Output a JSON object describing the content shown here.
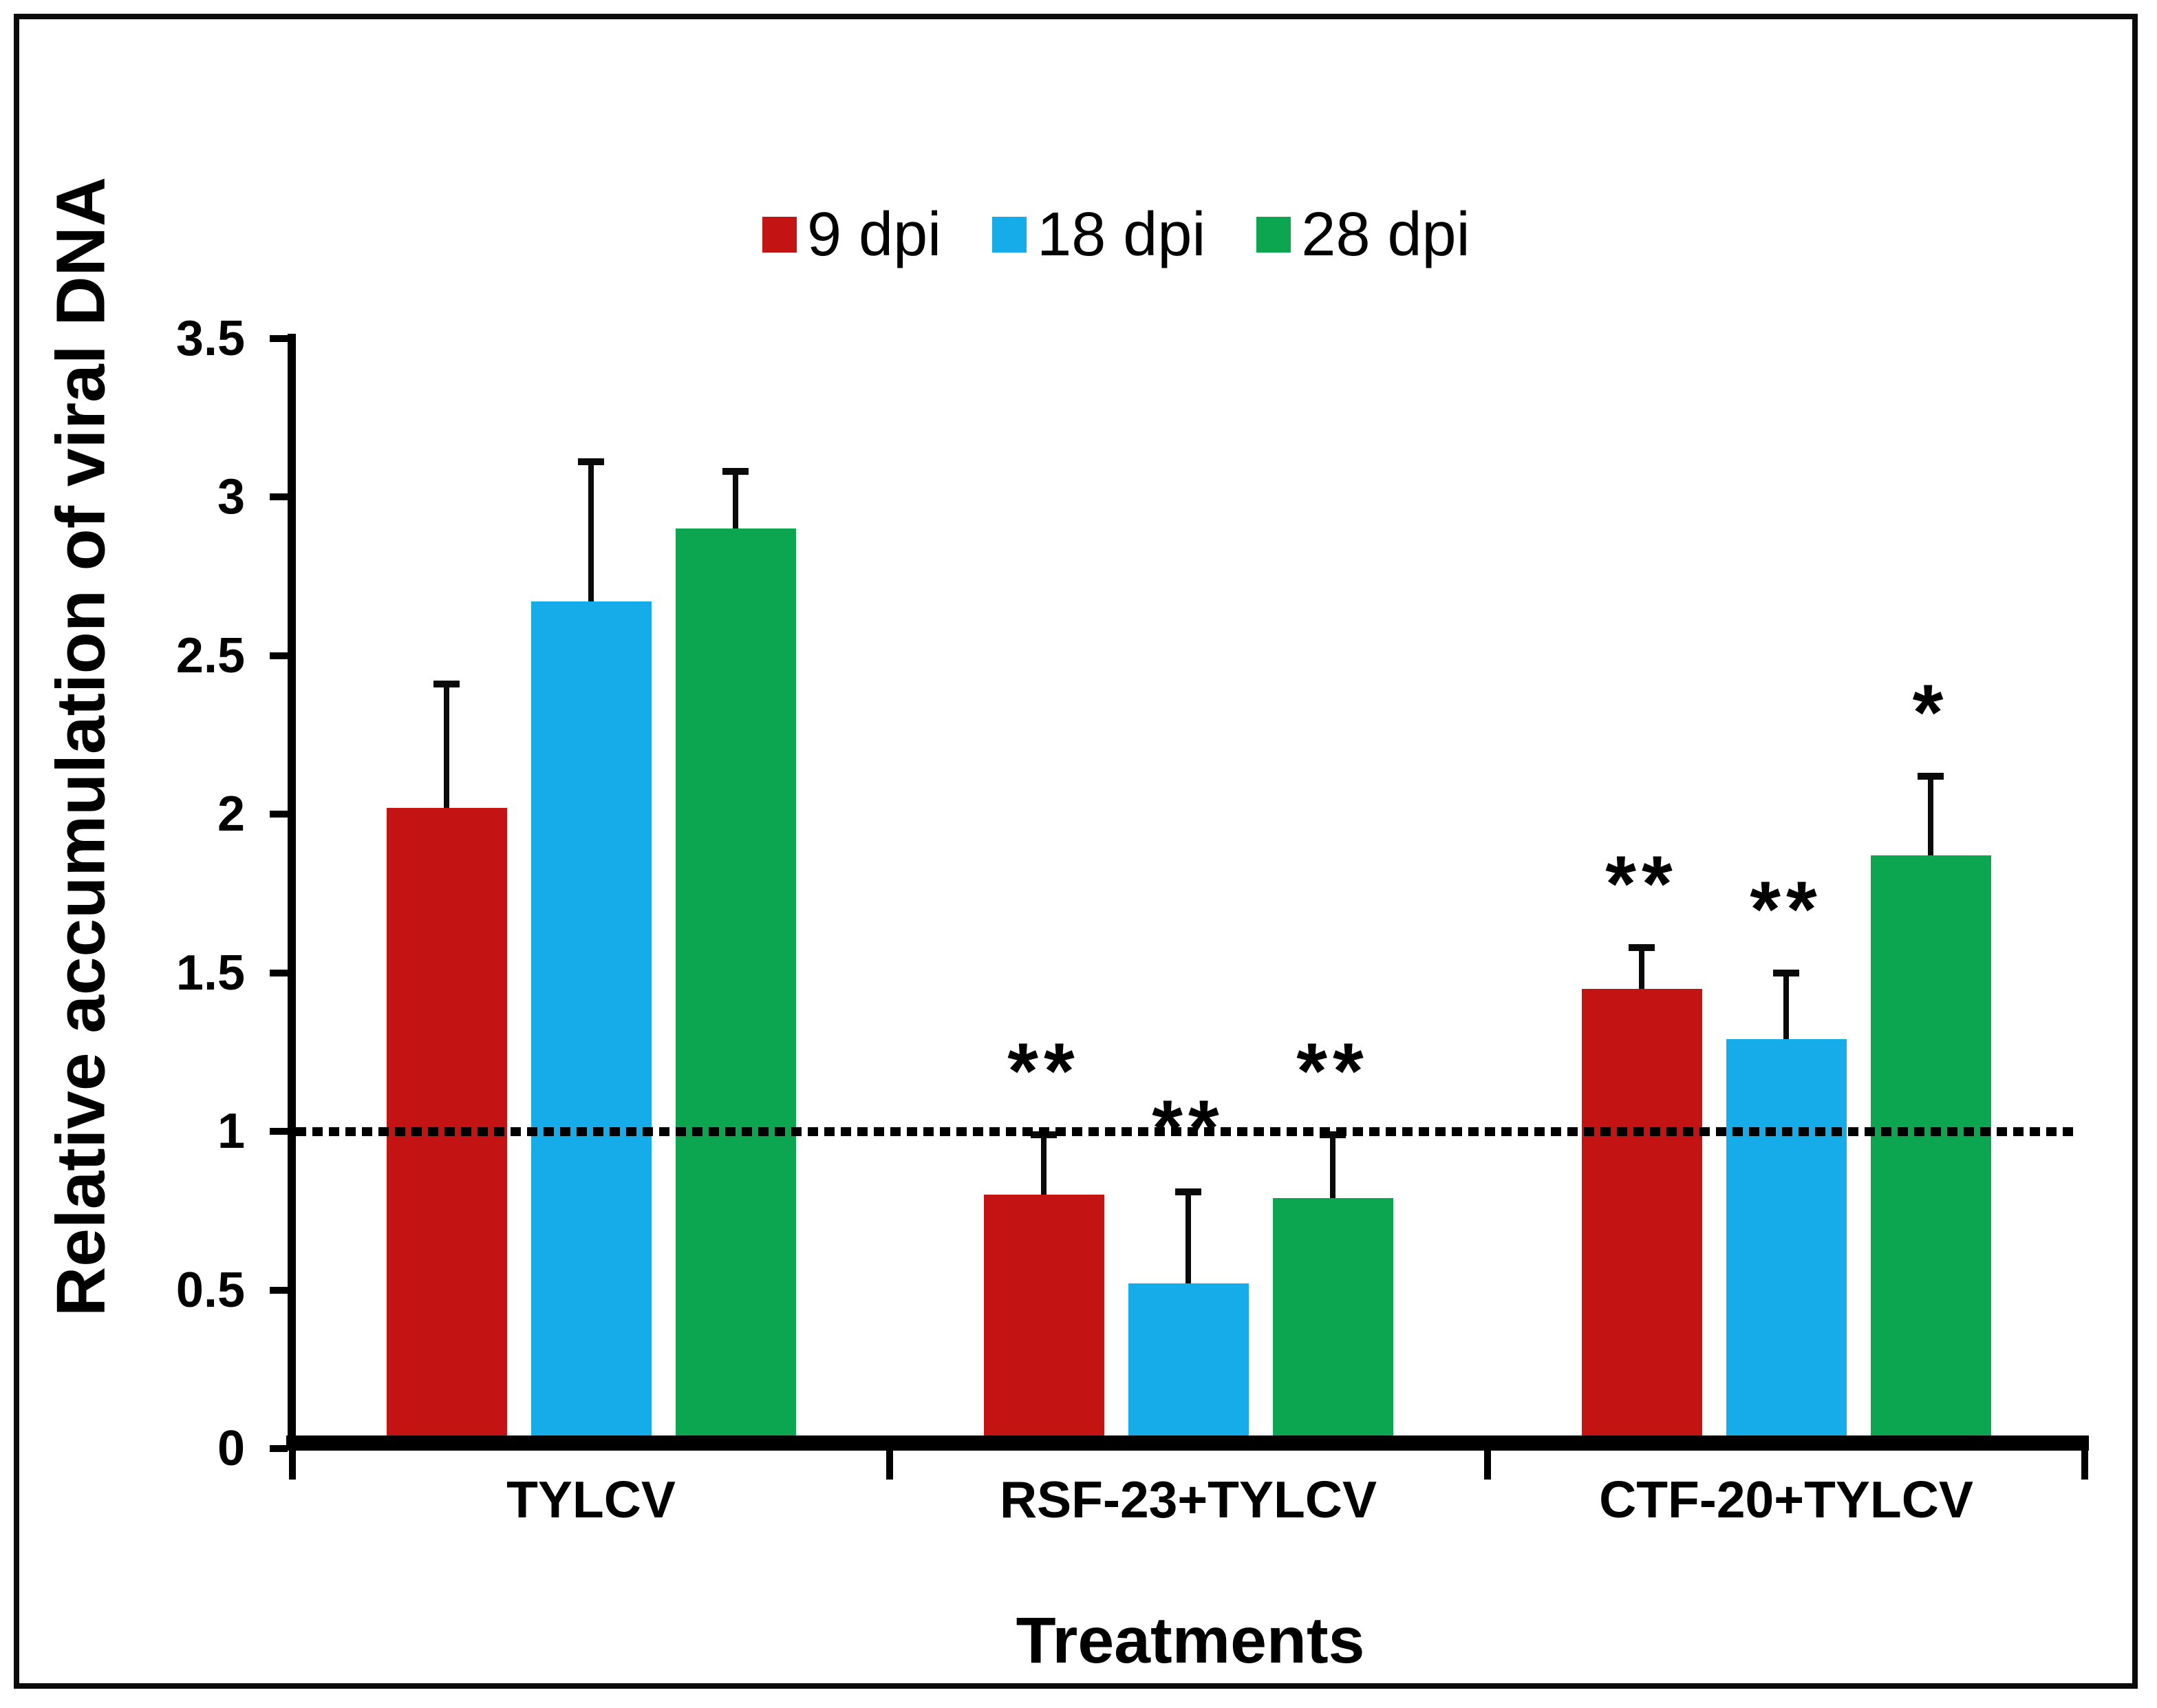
{
  "chart_data": {
    "type": "bar",
    "title": "",
    "categories": [
      "TYLCV",
      "RSF-23+TYLCV",
      "CTF-20+TYLCV"
    ],
    "series": [
      {
        "name": "9 dpi",
        "color": "#C31313",
        "values": [
          2.02,
          0.8,
          1.45
        ],
        "errors_plus": [
          0.39,
          0.19,
          0.13
        ],
        "significance": [
          "",
          "**",
          "**"
        ]
      },
      {
        "name": "18 dpi",
        "color": "#16ACE9",
        "values": [
          2.67,
          0.52,
          1.29
        ],
        "errors_plus": [
          0.44,
          0.29,
          0.21
        ],
        "significance": [
          "",
          "**",
          "**"
        ]
      },
      {
        "name": "28 dpi",
        "color": "#0BA64F",
        "values": [
          2.9,
          0.79,
          1.87
        ],
        "errors_plus": [
          0.18,
          0.2,
          0.25
        ],
        "significance": [
          "",
          "**",
          "*"
        ]
      }
    ],
    "xlabel": "Treatments",
    "ylabel": "Relative accumulation of viral DNA",
    "ylim": [
      0,
      3.5
    ],
    "yticks": [
      0,
      0.5,
      1,
      1.5,
      2,
      2.5,
      3,
      3.5
    ],
    "reference_line": {
      "value": 1,
      "style": "dotted"
    },
    "legend_position": "top",
    "grid": false,
    "colors": {
      "axis": "#000000",
      "background": "#ffffff",
      "border": "#0b0b0b"
    }
  }
}
